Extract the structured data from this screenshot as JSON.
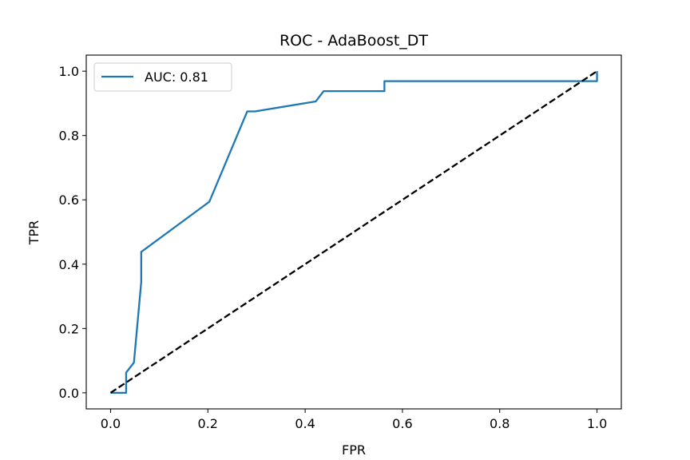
{
  "chart_data": {
    "type": "line",
    "title": "ROC - AdaBoost_DT",
    "xlabel": "FPR",
    "ylabel": "TPR",
    "xlim": [
      -0.05,
      1.05
    ],
    "ylim": [
      -0.05,
      1.05
    ],
    "x_ticks": [
      0.0,
      0.2,
      0.4,
      0.6,
      0.8,
      1.0
    ],
    "y_ticks": [
      0.0,
      0.2,
      0.4,
      0.6,
      0.8,
      1.0
    ],
    "x_tick_labels": [
      "0.0",
      "0.2",
      "0.4",
      "0.6",
      "0.8",
      "1.0"
    ],
    "y_tick_labels": [
      "0.0",
      "0.2",
      "0.4",
      "0.6",
      "0.8",
      "1.0"
    ],
    "grid": false,
    "legend": {
      "placement": "upper-left",
      "entries": [
        "AUC: 0.81"
      ]
    },
    "series": [
      {
        "name": "AUC: 0.81",
        "color": "#1f77b4",
        "style": "solid",
        "x": [
          0.0,
          0.032,
          0.032,
          0.032,
          0.048,
          0.063,
          0.063,
          0.063,
          0.203,
          0.281,
          0.297,
          0.422,
          0.438,
          0.563,
          0.563,
          1.0,
          1.0
        ],
        "y": [
          0.0,
          0.0,
          0.031,
          0.063,
          0.094,
          0.344,
          0.375,
          0.438,
          0.594,
          0.875,
          0.875,
          0.906,
          0.938,
          0.938,
          0.969,
          0.969,
          1.0
        ]
      },
      {
        "color": "#000000",
        "style": "dashed",
        "x": [
          0.0,
          1.0
        ],
        "y": [
          0.0,
          1.0
        ]
      }
    ]
  }
}
